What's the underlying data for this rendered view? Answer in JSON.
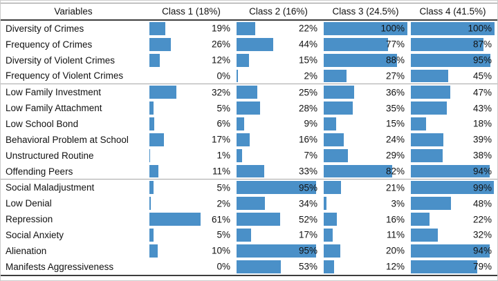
{
  "colors": {
    "bar": "#4a90c8",
    "header_top_line": "#8c8c8c",
    "strong_line": "#3c3c3c",
    "group_line": "#a6a6a6"
  },
  "table": {
    "value_suffix": "%",
    "header": {
      "variables": "Variables",
      "classes": [
        "Class 1 (18%)",
        "Class 2 (16%)",
        "Class 3 (24.5%)",
        "Class 4 (41.5%)"
      ]
    },
    "groups": [
      {
        "rows": [
          {
            "label": "Diversity of Crimes",
            "values": [
              19,
              22,
              100,
              100
            ]
          },
          {
            "label": "Frequency of Crimes",
            "values": [
              26,
              44,
              77,
              87
            ]
          },
          {
            "label": "Diversity of Violent Crimes",
            "values": [
              12,
              15,
              88,
              95
            ]
          },
          {
            "label": "Frequency of Violent Crimes",
            "values": [
              0,
              2,
              27,
              45
            ]
          }
        ]
      },
      {
        "rows": [
          {
            "label": "Low Family Investment",
            "values": [
              32,
              25,
              36,
              47
            ]
          },
          {
            "label": "Low Family Attachment",
            "values": [
              5,
              28,
              35,
              43
            ]
          },
          {
            "label": "Low School Bond",
            "values": [
              6,
              9,
              15,
              18
            ]
          },
          {
            "label": "Behavioral Problem at School",
            "values": [
              17,
              16,
              24,
              39
            ]
          },
          {
            "label": "Unstructured Routine",
            "values": [
              1,
              7,
              29,
              38
            ]
          },
          {
            "label": "Offending Peers",
            "values": [
              11,
              33,
              82,
              94
            ]
          }
        ]
      },
      {
        "rows": [
          {
            "label": "Social Maladjustment",
            "values": [
              5,
              95,
              21,
              99
            ]
          },
          {
            "label": "Low Denial",
            "values": [
              2,
              34,
              3,
              48
            ]
          },
          {
            "label": "Repression",
            "values": [
              61,
              52,
              16,
              22
            ]
          },
          {
            "label": "Social Anxiety",
            "values": [
              5,
              17,
              11,
              32
            ]
          },
          {
            "label": "Alienation",
            "values": [
              10,
              95,
              20,
              94
            ]
          },
          {
            "label": "Manifests Aggressiveness",
            "values": [
              0,
              53,
              12,
              79
            ]
          }
        ]
      }
    ]
  },
  "chart_data": {
    "type": "bar",
    "orientation": "horizontal",
    "title": "",
    "xlabel": "",
    "ylabel": "",
    "xlim": [
      0,
      100
    ],
    "unit": "%",
    "legend_position": "column-headers",
    "grid": false,
    "categories": [
      "Diversity of Crimes",
      "Frequency of Crimes",
      "Diversity of Violent Crimes",
      "Frequency of Violent Crimes",
      "Low Family Investment",
      "Low Family Attachment",
      "Low School Bond",
      "Behavioral Problem at School",
      "Unstructured Routine",
      "Offending Peers",
      "Social Maladjustment",
      "Low Denial",
      "Repression",
      "Social Anxiety",
      "Alienation",
      "Manifests Aggressiveness"
    ],
    "series": [
      {
        "name": "Class 1 (18%)",
        "values": [
          19,
          26,
          12,
          0,
          32,
          5,
          6,
          17,
          1,
          11,
          5,
          2,
          61,
          5,
          10,
          0
        ]
      },
      {
        "name": "Class 2 (16%)",
        "values": [
          22,
          44,
          15,
          2,
          25,
          28,
          9,
          16,
          7,
          33,
          95,
          34,
          52,
          17,
          95,
          53
        ]
      },
      {
        "name": "Class 3 (24.5%)",
        "values": [
          100,
          77,
          88,
          27,
          36,
          35,
          15,
          24,
          29,
          82,
          21,
          3,
          16,
          11,
          20,
          12
        ]
      },
      {
        "name": "Class 4 (41.5%)",
        "values": [
          100,
          87,
          95,
          45,
          47,
          43,
          18,
          39,
          38,
          94,
          99,
          48,
          22,
          32,
          94,
          79
        ]
      }
    ],
    "group_breaks_after_categories": [
      "Frequency of Violent Crimes",
      "Offending Peers"
    ]
  }
}
